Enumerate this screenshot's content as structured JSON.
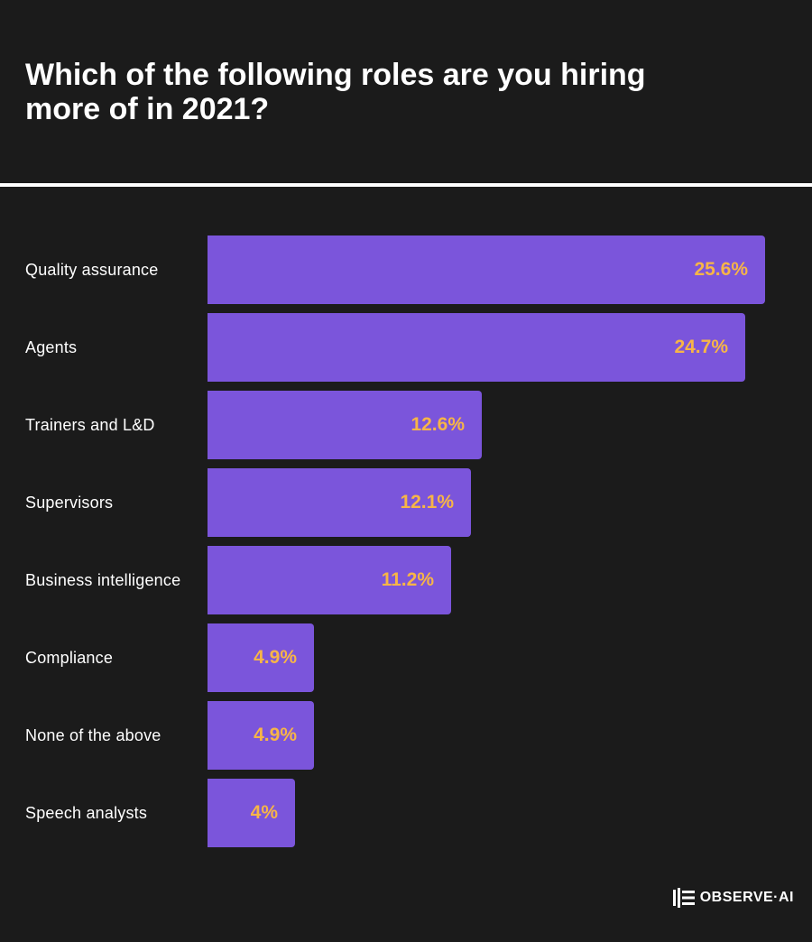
{
  "title": "Which of the following roles are you hiring more of in 2021?",
  "colors": {
    "background": "#1b1b1b",
    "bar": "#7b55db",
    "value_label": "#f7b547",
    "text": "#ffffff"
  },
  "logo": {
    "text": "OBSERVE·AI",
    "icon": "observe-ai-logo-icon"
  },
  "chart_data": {
    "type": "bar",
    "orientation": "horizontal",
    "categories": [
      "Quality assurance",
      "Agents",
      "Trainers and L&D",
      "Supervisors",
      "Business intelligence",
      "Compliance",
      "None of the above",
      "Speech analysts"
    ],
    "values": [
      25.6,
      24.7,
      12.6,
      12.1,
      11.2,
      4.9,
      4.9,
      4
    ],
    "value_labels": [
      "25.6%",
      "24.7%",
      "12.6%",
      "12.1%",
      "11.2%",
      "4.9%",
      "4.9%",
      "4%"
    ],
    "unit": "%",
    "xlim": [
      0,
      25.6
    ],
    "grid": false,
    "legend": "none"
  }
}
